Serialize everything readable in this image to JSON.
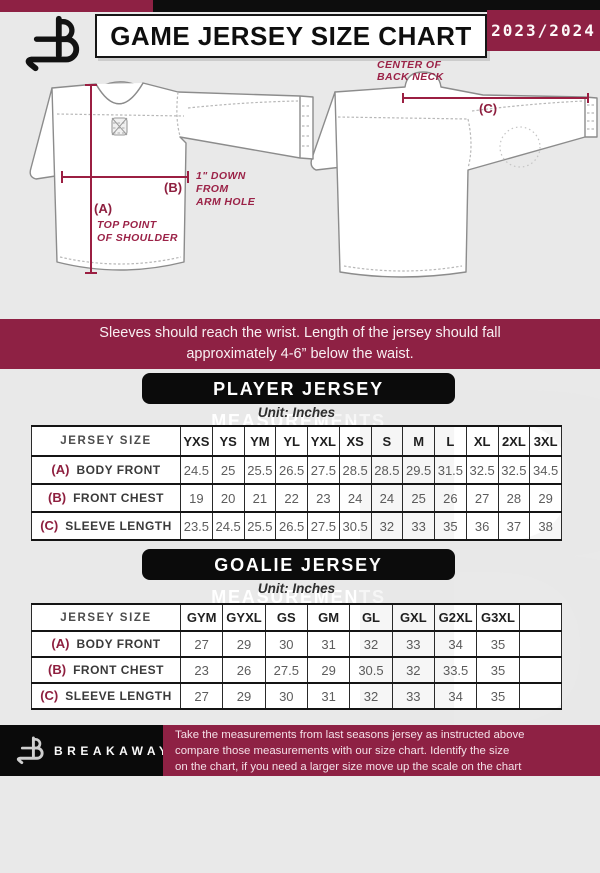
{
  "header": {
    "title": "GAME JERSEY SIZE CHART",
    "season": "2023/2024"
  },
  "watermark": "B",
  "diagram": {
    "front": {
      "a_key": "(A)",
      "a_note1": "TOP POINT",
      "a_note2": "OF SHOULDER",
      "b_key": "(B)",
      "b_note1": "1\" DOWN",
      "b_note2": "FROM",
      "b_note3": "ARM HOLE"
    },
    "back": {
      "c_key": "(C)",
      "c_note1": "CENTER OF",
      "c_note2": "BACK NECK"
    }
  },
  "banner": {
    "line1": "Sleeves should reach the wrist. Length of the jersey should fall",
    "line2": "approximately 4-6” below the waist."
  },
  "sections": [
    {
      "title": "PLAYER JERSEY MEASUREMENTS",
      "unit": "Unit: Inches",
      "size_header": "JERSEY SIZE",
      "sizes": [
        "YXS",
        "YS",
        "YM",
        "YL",
        "YXL",
        "XS",
        "S",
        "M",
        "L",
        "XL",
        "2XL",
        "3XL"
      ],
      "rows": [
        {
          "key": "(A)",
          "label": "BODY FRONT",
          "values": [
            "24.5",
            "25",
            "25.5",
            "26.5",
            "27.5",
            "28.5",
            "28.5",
            "29.5",
            "31.5",
            "32.5",
            "32.5",
            "34.5"
          ]
        },
        {
          "key": "(B)",
          "label": "FRONT CHEST",
          "values": [
            "19",
            "20",
            "21",
            "22",
            "23",
            "24",
            "24",
            "25",
            "26",
            "27",
            "28",
            "29"
          ]
        },
        {
          "key": "(C)",
          "label": "SLEEVE LENGTH",
          "values": [
            "23.5",
            "24.5",
            "25.5",
            "26.5",
            "27.5",
            "30.5",
            "32",
            "33",
            "35",
            "36",
            "37",
            "38"
          ]
        }
      ]
    },
    {
      "title": "GOALIE JERSEY MEASUREMENTS",
      "unit": "Unit: Inches",
      "size_header": "JERSEY SIZE",
      "sizes": [
        "GYM",
        "GYXL",
        "GS",
        "GM",
        "GL",
        "GXL",
        "G2XL",
        "G3XL",
        ""
      ],
      "rows": [
        {
          "key": "(A)",
          "label": "BODY FRONT",
          "values": [
            "27",
            "29",
            "30",
            "31",
            "32",
            "33",
            "34",
            "35",
            ""
          ]
        },
        {
          "key": "(B)",
          "label": "FRONT CHEST",
          "values": [
            "23",
            "26",
            "27.5",
            "29",
            "30.5",
            "32",
            "33.5",
            "35",
            ""
          ]
        },
        {
          "key": "(C)",
          "label": "SLEEVE LENGTH",
          "values": [
            "27",
            "29",
            "30",
            "31",
            "32",
            "33",
            "34",
            "35",
            ""
          ]
        }
      ]
    }
  ],
  "footer": {
    "brand": "BREAKAWAY",
    "note_line1": "Take the measurements from last seasons jersey as instructed above",
    "note_line2": "compare those measurements  with our size chart. Identify the size",
    "note_line3": "on the chart, if you need a larger size move up the scale on the chart"
  },
  "colors": {
    "maroon": "#8e2144",
    "black": "#0d0d0d",
    "background": "#e9e9e9"
  }
}
